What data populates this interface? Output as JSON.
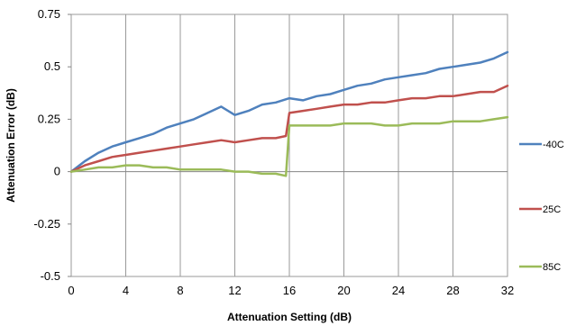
{
  "chart_data": {
    "type": "line",
    "title": "",
    "xlabel": "Attenuation Setting (dB)",
    "ylabel": "Attenuation Error (dB)",
    "xlim": [
      0,
      32
    ],
    "ylim": [
      -0.5,
      0.75
    ],
    "xticks": [
      0,
      4,
      8,
      12,
      16,
      20,
      24,
      28,
      32
    ],
    "yticks": [
      -0.5,
      -0.25,
      0,
      0.25,
      0.5,
      0.75
    ],
    "ytick_labels": [
      "-0.5",
      "-0.25",
      "0",
      "0.25",
      "0.5",
      "0.75"
    ],
    "grid": "vertical",
    "legend_position": "right",
    "series": [
      {
        "name": "-40C",
        "color": "#4F81BD",
        "x": [
          0,
          1,
          2,
          3,
          4,
          5,
          6,
          7,
          8,
          9,
          10,
          11,
          12,
          13,
          14,
          15,
          16,
          17,
          18,
          19,
          20,
          21,
          22,
          23,
          24,
          25,
          26,
          27,
          28,
          29,
          30,
          31,
          32
        ],
        "y": [
          0.0,
          0.05,
          0.09,
          0.12,
          0.14,
          0.16,
          0.18,
          0.21,
          0.23,
          0.25,
          0.28,
          0.31,
          0.27,
          0.29,
          0.32,
          0.33,
          0.35,
          0.34,
          0.36,
          0.37,
          0.39,
          0.41,
          0.42,
          0.44,
          0.45,
          0.46,
          0.47,
          0.49,
          0.5,
          0.51,
          0.52,
          0.54,
          0.57
        ]
      },
      {
        "name": "25C",
        "color": "#C0504D",
        "x": [
          0,
          1,
          2,
          3,
          4,
          5,
          6,
          7,
          8,
          9,
          10,
          11,
          12,
          13,
          14,
          15,
          15.75,
          16,
          17,
          18,
          19,
          20,
          21,
          22,
          23,
          24,
          25,
          26,
          27,
          28,
          29,
          30,
          31,
          32
        ],
        "y": [
          0.0,
          0.03,
          0.05,
          0.07,
          0.08,
          0.09,
          0.1,
          0.11,
          0.12,
          0.13,
          0.14,
          0.15,
          0.14,
          0.15,
          0.16,
          0.16,
          0.17,
          0.28,
          0.29,
          0.3,
          0.31,
          0.32,
          0.32,
          0.33,
          0.33,
          0.34,
          0.35,
          0.35,
          0.36,
          0.36,
          0.37,
          0.38,
          0.38,
          0.41
        ]
      },
      {
        "name": "85C",
        "color": "#9BBB59",
        "x": [
          0,
          1,
          2,
          3,
          4,
          5,
          6,
          7,
          8,
          9,
          10,
          11,
          12,
          13,
          14,
          15,
          15.75,
          16,
          17,
          18,
          19,
          20,
          21,
          22,
          23,
          24,
          25,
          26,
          27,
          28,
          29,
          30,
          31,
          32
        ],
        "y": [
          0.0,
          0.01,
          0.02,
          0.02,
          0.03,
          0.03,
          0.02,
          0.02,
          0.01,
          0.01,
          0.01,
          0.01,
          0.0,
          0.0,
          -0.01,
          -0.01,
          -0.02,
          0.22,
          0.22,
          0.22,
          0.22,
          0.23,
          0.23,
          0.23,
          0.22,
          0.22,
          0.23,
          0.23,
          0.23,
          0.24,
          0.24,
          0.24,
          0.25,
          0.26
        ]
      }
    ]
  }
}
